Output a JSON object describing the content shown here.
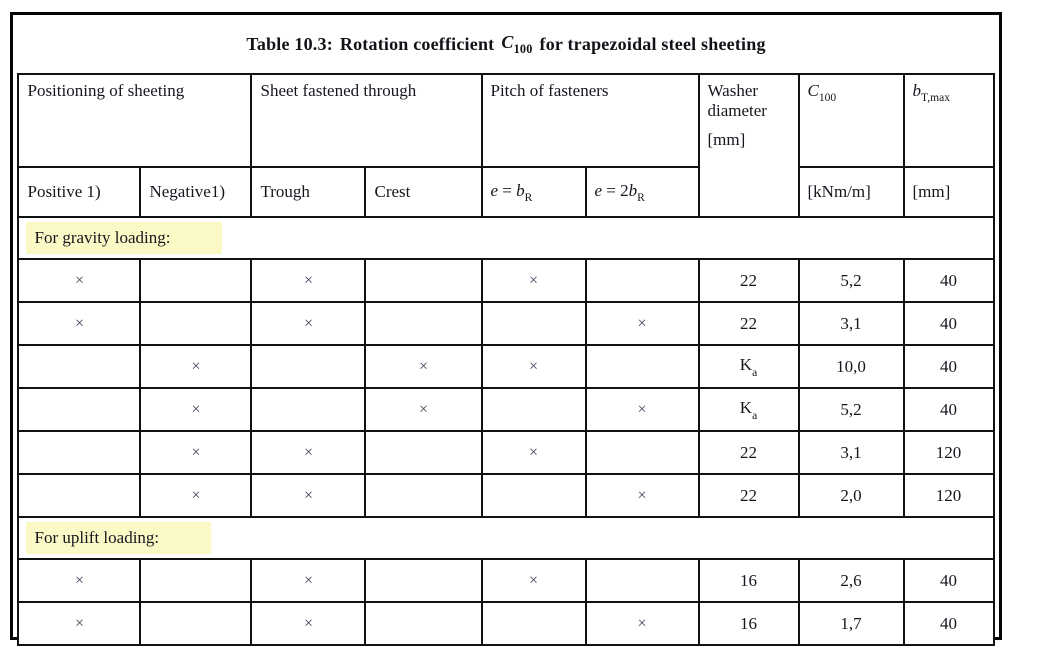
{
  "caption": {
    "label": "Table 10.3:",
    "text_before": "Rotation coefficient",
    "symbol": "C",
    "symbol_sub": "100",
    "text_after": "for trapezoidal steel sheeting"
  },
  "mark_glyph": "×",
  "colors": {
    "section_highlight": "#fbf9c5",
    "border": "#111111",
    "text": "#16161f"
  },
  "header": {
    "groups": {
      "positioning": "Positioning of sheeting",
      "fastened": "Sheet fastened through",
      "pitch": "Pitch of fasteners"
    },
    "sub": {
      "positive": "Positive 1)",
      "negative": "Negative1)",
      "trough": "Trough",
      "crest": "Crest"
    },
    "pitch1": {
      "e": "e",
      "eq": " = ",
      "coef": "",
      "b": "b",
      "sub": "R"
    },
    "pitch2": {
      "e": "e",
      "eq": " = ",
      "coef": "2",
      "b": "b",
      "sub": "R"
    },
    "washer": {
      "line1": "Washer",
      "line2": "diameter",
      "unit": "[mm]"
    },
    "c100": {
      "sym": "C",
      "sub": "100",
      "unit": "[kNm/m]"
    },
    "btmax": {
      "sym": "b",
      "sub": "T,max",
      "unit": "[mm]"
    }
  },
  "sections": [
    {
      "label": "For gravity loading:",
      "rows": [
        {
          "marks": [
            1,
            0,
            1,
            0,
            1,
            0
          ],
          "washer": "22",
          "washer_sub": "",
          "c100": "5,2",
          "btmax": "40"
        },
        {
          "marks": [
            1,
            0,
            1,
            0,
            0,
            1
          ],
          "washer": "22",
          "washer_sub": "",
          "c100": "3,1",
          "btmax": "40"
        },
        {
          "marks": [
            0,
            1,
            0,
            1,
            1,
            0
          ],
          "washer": "K",
          "washer_sub": "a",
          "c100": "10,0",
          "btmax": "40"
        },
        {
          "marks": [
            0,
            1,
            0,
            1,
            0,
            1
          ],
          "washer": "K",
          "washer_sub": "a",
          "c100": "5,2",
          "btmax": "40"
        },
        {
          "marks": [
            0,
            1,
            1,
            0,
            1,
            0
          ],
          "washer": "22",
          "washer_sub": "",
          "c100": "3,1",
          "btmax": "120"
        },
        {
          "marks": [
            0,
            1,
            1,
            0,
            0,
            1
          ],
          "washer": "22",
          "washer_sub": "",
          "c100": "2,0",
          "btmax": "120"
        }
      ]
    },
    {
      "label": "For uplift loading:",
      "rows": [
        {
          "marks": [
            1,
            0,
            1,
            0,
            1,
            0
          ],
          "washer": "16",
          "washer_sub": "",
          "c100": "2,6",
          "btmax": "40"
        },
        {
          "marks": [
            1,
            0,
            1,
            0,
            0,
            1
          ],
          "washer": "16",
          "washer_sub": "",
          "c100": "1,7",
          "btmax": "40"
        }
      ]
    }
  ]
}
